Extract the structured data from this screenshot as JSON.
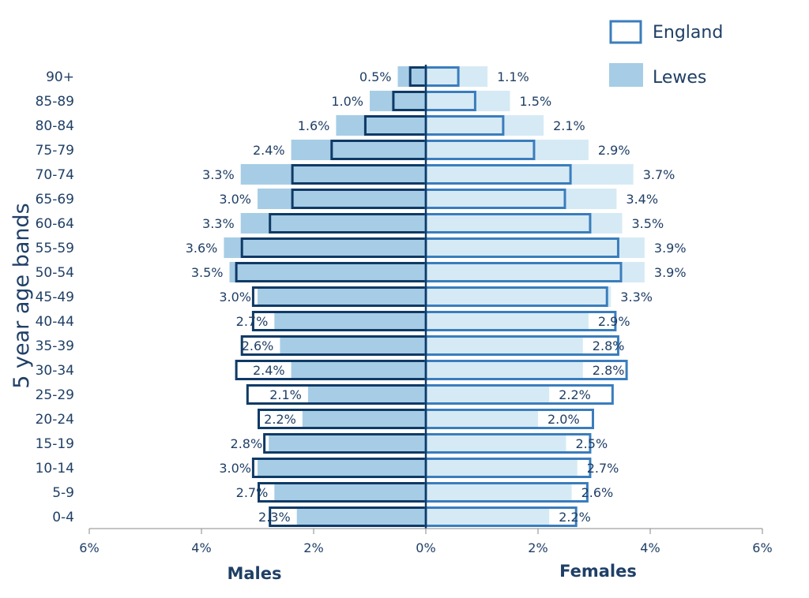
{
  "colors": {
    "lewes_male": "#a6cde5",
    "lewes_female": "#d6eaf5",
    "england_male_outline": "#0f3a66",
    "england_female_outline": "#3a7dbd",
    "text": "#1f3f66",
    "axis": "#8a8a8a"
  },
  "chart_data": {
    "type": "bar",
    "orientation": "horizontal-population-pyramid",
    "categories": [
      "0-4",
      "5-9",
      "10-14",
      "15-19",
      "20-24",
      "25-29",
      "30-34",
      "35-39",
      "40-44",
      "45-49",
      "50-54",
      "55-59",
      "60-64",
      "65-69",
      "70-74",
      "75-79",
      "80-84",
      "85-89",
      "90+"
    ],
    "ylabel": "5 year age bands",
    "xlabel_left": "Males",
    "xlabel_right": "Females",
    "xlim": [
      -6,
      6
    ],
    "xticks": [
      "6%",
      "4%",
      "2%",
      "0%",
      "2%",
      "4%",
      "6%"
    ],
    "legend": [
      {
        "name": "England",
        "style": "outline"
      },
      {
        "name": "Lewes",
        "style": "filled"
      }
    ],
    "legend_position": "top-right",
    "grid": false,
    "series": [
      {
        "name": "Lewes",
        "males": [
          2.3,
          2.7,
          3.0,
          2.8,
          2.2,
          2.1,
          2.4,
          2.6,
          2.7,
          3.0,
          3.5,
          3.6,
          3.3,
          3.0,
          3.3,
          2.4,
          1.6,
          1.0,
          0.5
        ],
        "females": [
          2.2,
          2.6,
          2.7,
          2.5,
          2.0,
          2.2,
          2.8,
          2.8,
          2.9,
          3.3,
          3.9,
          3.9,
          3.5,
          3.4,
          3.7,
          2.9,
          2.1,
          1.5,
          1.1
        ],
        "male_labels": [
          "2.3%",
          "2.7%",
          "3.0%",
          "2.8%",
          "2.2%",
          "2.1%",
          "2.4%",
          "2.6%",
          "2.7%",
          "3.0%",
          "3.5%",
          "3.6%",
          "3.3%",
          "3.0%",
          "3.3%",
          "2.4%",
          "1.6%",
          "1.0%",
          "0.5%"
        ],
        "female_labels": [
          "2.2%",
          "2.6%",
          "2.7%",
          "2.5%",
          "2.0%",
          "2.2%",
          "2.8%",
          "2.8%",
          "2.9%",
          "3.3%",
          "3.9%",
          "3.9%",
          "3.5%",
          "3.4%",
          "3.7%",
          "2.9%",
          "2.1%",
          "1.5%",
          "1.1%"
        ]
      },
      {
        "name": "England",
        "males": [
          2.8,
          3.0,
          3.1,
          2.9,
          3.0,
          3.2,
          3.4,
          3.3,
          3.1,
          3.1,
          3.4,
          3.3,
          2.8,
          2.4,
          2.4,
          1.7,
          1.1,
          0.6,
          0.3
        ],
        "females": [
          2.7,
          2.9,
          2.95,
          2.95,
          3.0,
          3.35,
          3.6,
          3.45,
          3.4,
          3.25,
          3.5,
          3.45,
          2.95,
          2.5,
          2.6,
          1.95,
          1.4,
          0.9,
          0.6
        ]
      }
    ]
  }
}
